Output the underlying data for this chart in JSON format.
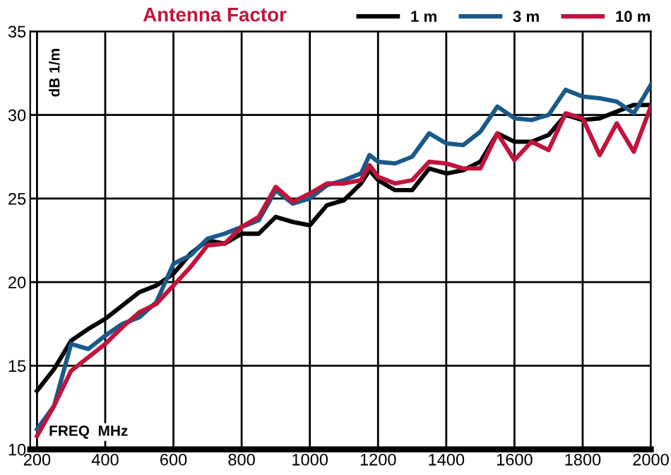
{
  "chart_data": {
    "type": "line",
    "title": "Antenna Factor",
    "xlabel": "FREQ  MHz",
    "ylabel": "dB 1/m",
    "x": [
      200,
      250,
      300,
      350,
      400,
      450,
      500,
      550,
      600,
      650,
      700,
      750,
      800,
      850,
      900,
      950,
      1000,
      1050,
      1100,
      1150,
      1175,
      1200,
      1250,
      1300,
      1350,
      1400,
      1450,
      1500,
      1550,
      1600,
      1650,
      1700,
      1750,
      1800,
      1850,
      1900,
      1950,
      2000
    ],
    "series": [
      {
        "name": "1 m",
        "color": "#000000",
        "values": [
          13.5,
          14.8,
          16.5,
          17.2,
          17.8,
          18.6,
          19.4,
          19.8,
          20.5,
          21.7,
          22.5,
          22.3,
          22.9,
          22.9,
          23.9,
          23.6,
          23.4,
          24.6,
          24.9,
          25.9,
          26.7,
          26.1,
          25.5,
          25.5,
          26.8,
          26.5,
          26.7,
          27.2,
          28.9,
          28.4,
          28.4,
          28.8,
          30.0,
          29.7,
          29.8,
          30.2,
          30.6,
          30.6
        ]
      },
      {
        "name": "3 m",
        "color": "#1a5a8a",
        "values": [
          11.2,
          12.6,
          16.3,
          16.0,
          16.8,
          17.5,
          17.9,
          18.8,
          21.1,
          21.6,
          22.6,
          22.9,
          23.3,
          23.7,
          25.5,
          24.7,
          25.0,
          25.8,
          26.1,
          26.5,
          27.6,
          27.2,
          27.1,
          27.5,
          28.9,
          28.3,
          28.2,
          29.0,
          30.5,
          29.8,
          29.7,
          30.0,
          31.5,
          31.1,
          31.0,
          30.8,
          30.1,
          31.8
        ]
      },
      {
        "name": "10 m",
        "color": "#c0143c",
        "values": [
          10.8,
          12.6,
          14.7,
          15.5,
          16.3,
          17.3,
          18.2,
          18.7,
          19.8,
          20.9,
          22.2,
          22.3,
          23.3,
          23.9,
          25.7,
          24.8,
          25.3,
          25.9,
          25.9,
          26.1,
          27.0,
          26.3,
          25.9,
          26.1,
          27.2,
          27.1,
          26.8,
          26.8,
          28.9,
          27.3,
          28.4,
          27.9,
          30.1,
          29.8,
          27.6,
          29.5,
          27.8,
          30.5
        ]
      }
    ],
    "xlim": [
      180,
      2000
    ],
    "ylim": [
      10,
      35
    ],
    "xticks": [
      200,
      400,
      600,
      800,
      1000,
      1200,
      1400,
      1600,
      1800,
      2000
    ],
    "yticks": [
      10,
      15,
      20,
      25,
      30,
      35
    ],
    "grid": true,
    "legend": "top right",
    "line_style": "solid",
    "marker": "none"
  }
}
